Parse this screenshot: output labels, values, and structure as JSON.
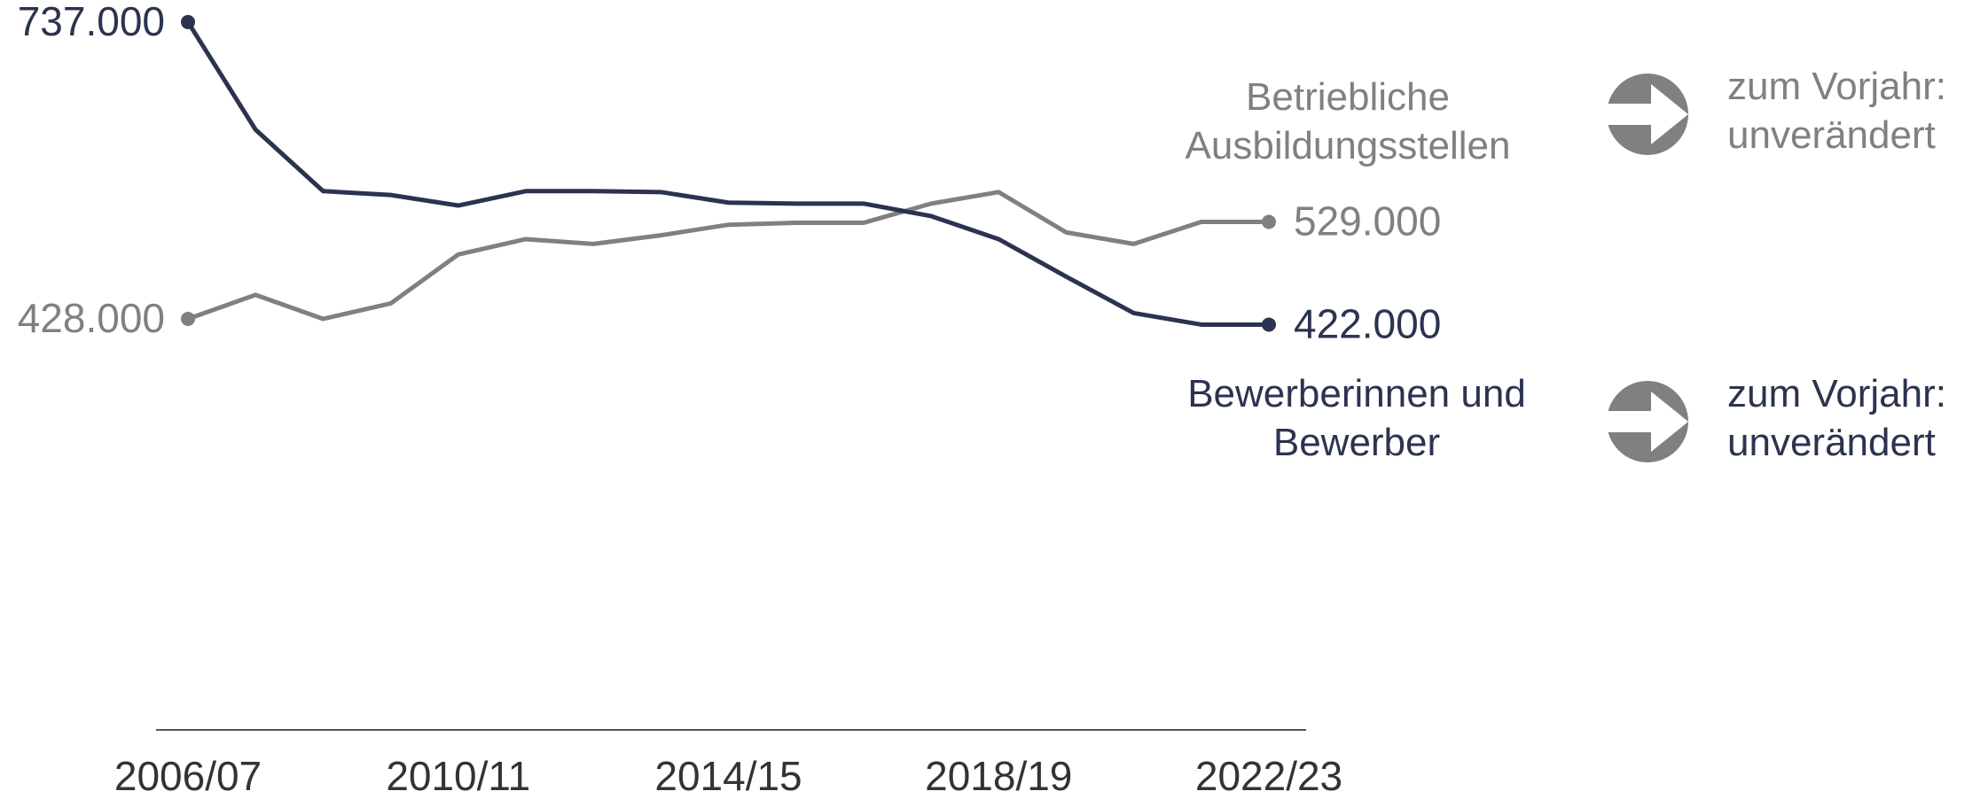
{
  "chart_data": {
    "type": "line",
    "categories": [
      "2006/07",
      null,
      null,
      null,
      "2010/11",
      null,
      null,
      null,
      "2014/15",
      null,
      null,
      null,
      "2018/19",
      null,
      null,
      null,
      "2022/23"
    ],
    "series": [
      {
        "name": "Betriebliche Ausbildungsstellen",
        "color": "#808080",
        "values": [
          428000,
          453000,
          428000,
          444000,
          495000,
          511000,
          506000,
          515000,
          526000,
          528000,
          528000,
          548000,
          560000,
          518000,
          506000,
          529000,
          529000
        ],
        "value_labels": [
          "428.000",
          null,
          null,
          null,
          null,
          null,
          null,
          null,
          null,
          null,
          null,
          null,
          null,
          null,
          null,
          null,
          "529.000"
        ]
      },
      {
        "name": "Bewerberinnen und Bewerber",
        "color": "#2b3350",
        "values": [
          737000,
          625000,
          561000,
          557000,
          546000,
          561000,
          561000,
          560000,
          549000,
          548000,
          548000,
          535000,
          511000,
          472000,
          434000,
          422000,
          422000
        ],
        "value_labels": [
          "737.000",
          null,
          null,
          null,
          null,
          null,
          null,
          null,
          null,
          null,
          null,
          null,
          null,
          null,
          null,
          null,
          "422.000"
        ]
      }
    ],
    "annotations": [
      "zum Vorjahr: unverändert",
      "zum Vorjahr: unverändert"
    ],
    "ylim": [
      0,
      760000
    ]
  }
}
